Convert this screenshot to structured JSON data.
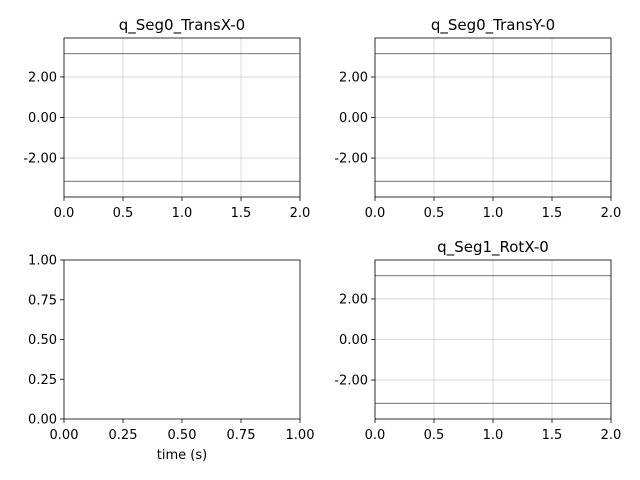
{
  "chart_data": [
    {
      "type": "line",
      "title": "q_Seg0_TransX-0",
      "xlabel": "",
      "ylabel": "",
      "xlim": [
        0,
        2
      ],
      "ylim": [
        -3.92,
        3.92
      ],
      "xticks": [
        0,
        0.5,
        1,
        1.5,
        2
      ],
      "xtick_labels": [
        "0.0",
        "0.5",
        "1.0",
        "1.5",
        "2.0"
      ],
      "yticks": [
        -2,
        0,
        2
      ],
      "ytick_labels": [
        "-2.00",
        "0.00",
        "2.00"
      ],
      "grid": true,
      "series": [
        {
          "x": [
            0,
            2
          ],
          "y": [
            3.14159,
            3.14159
          ]
        },
        {
          "x": [
            0,
            2
          ],
          "y": [
            -3.14159,
            -3.14159
          ]
        }
      ]
    },
    {
      "type": "line",
      "title": "q_Seg0_TransY-0",
      "xlabel": "",
      "ylabel": "",
      "xlim": [
        0,
        2
      ],
      "ylim": [
        -3.92,
        3.92
      ],
      "xticks": [
        0,
        0.5,
        1,
        1.5,
        2
      ],
      "xtick_labels": [
        "0.0",
        "0.5",
        "1.0",
        "1.5",
        "2.0"
      ],
      "yticks": [
        -2,
        0,
        2
      ],
      "ytick_labels": [
        "-2.00",
        "0.00",
        "2.00"
      ],
      "grid": true,
      "series": [
        {
          "x": [
            0,
            2
          ],
          "y": [
            3.14159,
            3.14159
          ]
        },
        {
          "x": [
            0,
            2
          ],
          "y": [
            -3.14159,
            -3.14159
          ]
        }
      ]
    },
    {
      "type": "line",
      "title": "",
      "xlabel": "time (s)",
      "ylabel": "",
      "xlim": [
        0,
        1
      ],
      "ylim": [
        0,
        1
      ],
      "xticks": [
        0,
        0.25,
        0.5,
        0.75,
        1
      ],
      "xtick_labels": [
        "0.00",
        "0.25",
        "0.50",
        "0.75",
        "1.00"
      ],
      "yticks": [
        0,
        0.25,
        0.5,
        0.75,
        1
      ],
      "ytick_labels": [
        "0.00",
        "0.25",
        "0.50",
        "0.75",
        "1.00"
      ],
      "grid": false,
      "series": []
    },
    {
      "type": "line",
      "title": "q_Seg1_RotX-0",
      "xlabel": "",
      "ylabel": "",
      "xlim": [
        0,
        2
      ],
      "ylim": [
        -3.92,
        3.92
      ],
      "xticks": [
        0,
        0.5,
        1,
        1.5,
        2
      ],
      "xtick_labels": [
        "0.0",
        "0.5",
        "1.0",
        "1.5",
        "2.0"
      ],
      "yticks": [
        -2,
        0,
        2
      ],
      "ytick_labels": [
        "-2.00",
        "0.00",
        "2.00"
      ],
      "grid": true,
      "series": [
        {
          "x": [
            0,
            2
          ],
          "y": [
            3.14159,
            3.14159
          ]
        },
        {
          "x": [
            0,
            2
          ],
          "y": [
            -3.14159,
            -3.14159
          ]
        }
      ]
    }
  ],
  "colors": {
    "line": "#444444",
    "grid": "#b0b0b0",
    "axes": "#000000"
  }
}
